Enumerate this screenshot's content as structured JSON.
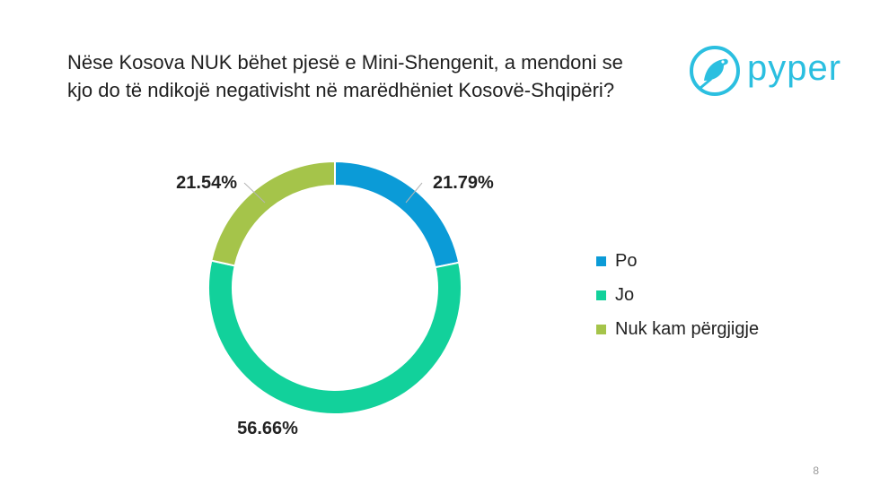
{
  "title_lines": [
    "Nëse Kosova NUK bëhet pjesë e Mini-Shengenit, a mendoni se",
    "kjo do të ndikojë negativisht në marëdhëniet Kosovë-Shqipëri?"
  ],
  "logo": {
    "text": "pyper",
    "color": "#2bbfe0"
  },
  "page_number": "8",
  "chart_data": {
    "type": "pie",
    "variant": "donut",
    "title": "Nëse Kosova NUK bëhet pjesë e Mini-Shengenit, a mendoni se kjo do të ndikojë negativisht në marëdhëniet Kosovë-Shqipëri?",
    "categories": [
      "Po",
      "Jo",
      "Nuk kam përgjigje"
    ],
    "values": [
      21.79,
      56.66,
      21.54
    ],
    "labels": [
      "21.79%",
      "56.66%",
      "21.54%"
    ],
    "colors": [
      "#0b9bd7",
      "#12d19b",
      "#a5c44a"
    ],
    "legend_position": "right"
  }
}
